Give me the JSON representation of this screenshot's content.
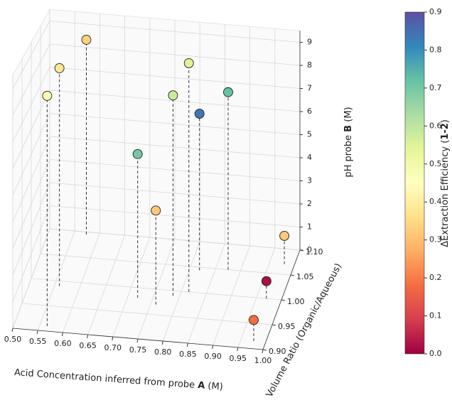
{
  "chart_data": {
    "type": "scatter3d",
    "xlabel": [
      "Acid Concentration inferred from probe ",
      "A",
      " (M)"
    ],
    "ylabel": "Volume Ratio (Organic/Aqueous)",
    "zlabel": [
      "pH probe ",
      "B",
      " (M)"
    ],
    "xlim": [
      0.5,
      1.0
    ],
    "ylim": [
      0.9,
      1.1
    ],
    "zlim": [
      0,
      9.5
    ],
    "xticks": [
      {
        "value": 0.5,
        "label": "0.50"
      },
      0.55,
      {
        "value": 0.6,
        "label": "0.60"
      },
      0.65,
      {
        "value": 0.7,
        "label": "0.70"
      },
      0.75,
      {
        "value": 0.8,
        "label": "0.80"
      },
      0.85,
      {
        "value": 0.9,
        "label": "0.90"
      },
      0.95,
      {
        "value": 1.0,
        "label": "1.00"
      }
    ],
    "yticks": [
      {
        "value": 0.9,
        "label": "0.90"
      },
      0.95,
      {
        "value": 1.0,
        "label": "1.00"
      },
      1.05,
      {
        "value": 1.1,
        "label": "1.10"
      }
    ],
    "zticks": [
      0,
      1,
      2,
      3,
      4,
      5,
      6,
      7,
      8,
      9
    ],
    "grid": true,
    "colormap": "Spectral",
    "colorbar": {
      "label": [
        "ΔExtraction Efficiency (",
        "1-2",
        ")"
      ],
      "clim": [
        0,
        0.9
      ],
      "ticks": [
        {
          "value": 0,
          "label": "0.0"
        },
        0.1,
        0.2,
        0.3,
        0.4,
        0.5,
        0.6,
        0.7,
        0.8,
        0.9
      ]
    },
    "series": [
      {
        "x": [
          0.575,
          0.56,
          0.565,
          0.815,
          0.787,
          0.875,
          0.82,
          0.72,
          0.76,
          0.98,
          0.97,
          0.976
        ],
        "y": [
          1.095,
          0.99,
          0.91,
          1.0,
          0.99,
          1.05,
          1.044,
          0.98,
          0.97,
          1.07,
          1.0,
          0.915
        ],
        "z": [
          8.4,
          8.7,
          8.7,
          9.2,
          8.0,
          7.4,
          6.5,
          5.7,
          3.7,
          1.2,
          0.7,
          0.8
        ],
        "c": [
          0.33,
          0.38,
          0.43,
          0.55,
          0.58,
          0.72,
          0.84,
          0.7,
          0.32,
          0.32,
          0.02,
          0.18
        ]
      }
    ]
  }
}
